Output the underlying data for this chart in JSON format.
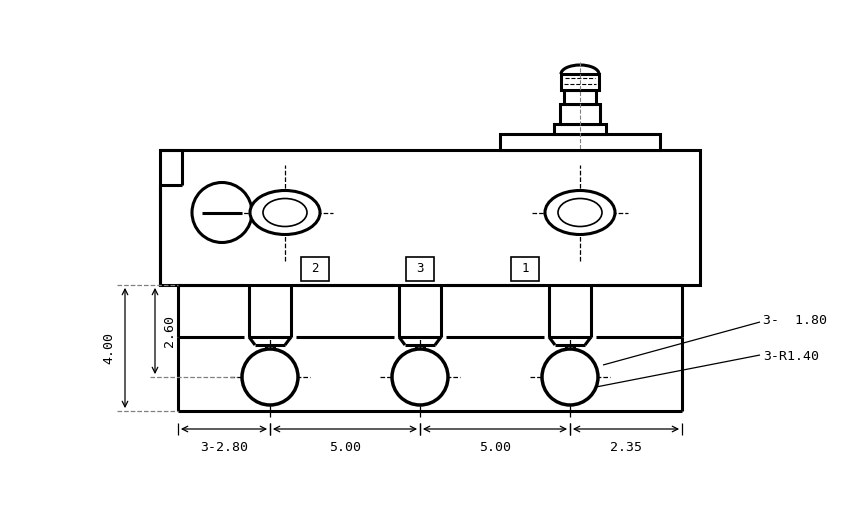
{
  "bg_color": "#ffffff",
  "line_color": "#000000",
  "lw_main": 2.2,
  "lw_thin": 1.2,
  "lw_dim": 0.9,
  "fig_width": 8.6,
  "fig_height": 5.2,
  "dpi": 100,
  "annotations": {
    "dim_3_180": "3-  1.80",
    "dim_3R140": "3-R1.40",
    "dim_400": "4.00",
    "dim_260": "2.60",
    "dim_3_280": "3-2.80",
    "dim_500a": "5.00",
    "dim_500b": "5.00",
    "dim_235": "2.35"
  }
}
